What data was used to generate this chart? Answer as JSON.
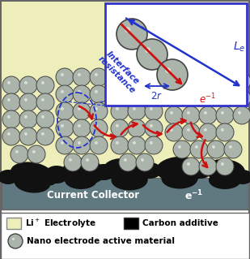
{
  "fig_width": 3.09,
  "fig_height": 3.19,
  "dpi": 100,
  "bg_color": "#eeeebb",
  "border_color": "#666666",
  "collector_color": "#607880",
  "collector_text": "Current Collector",
  "collector_text_color": "white",
  "sphere_face_color": "#aab4aa",
  "sphere_edge_color": "#444444",
  "carbon_color": "#111111",
  "inset_bg": "#ffffff",
  "inset_border": "#3333cc",
  "arrow_blue": "#2233cc",
  "arrow_red": "#cc1111",
  "legend_rect_yellow": "#eeeebb",
  "legend_circle_color": "#aab4aa",
  "legend_circle_edge": "#444444",
  "label_li": "Li+ Electrolyte",
  "label_carbon": "Carbon additive",
  "label_nano": "Nano electrode active material"
}
